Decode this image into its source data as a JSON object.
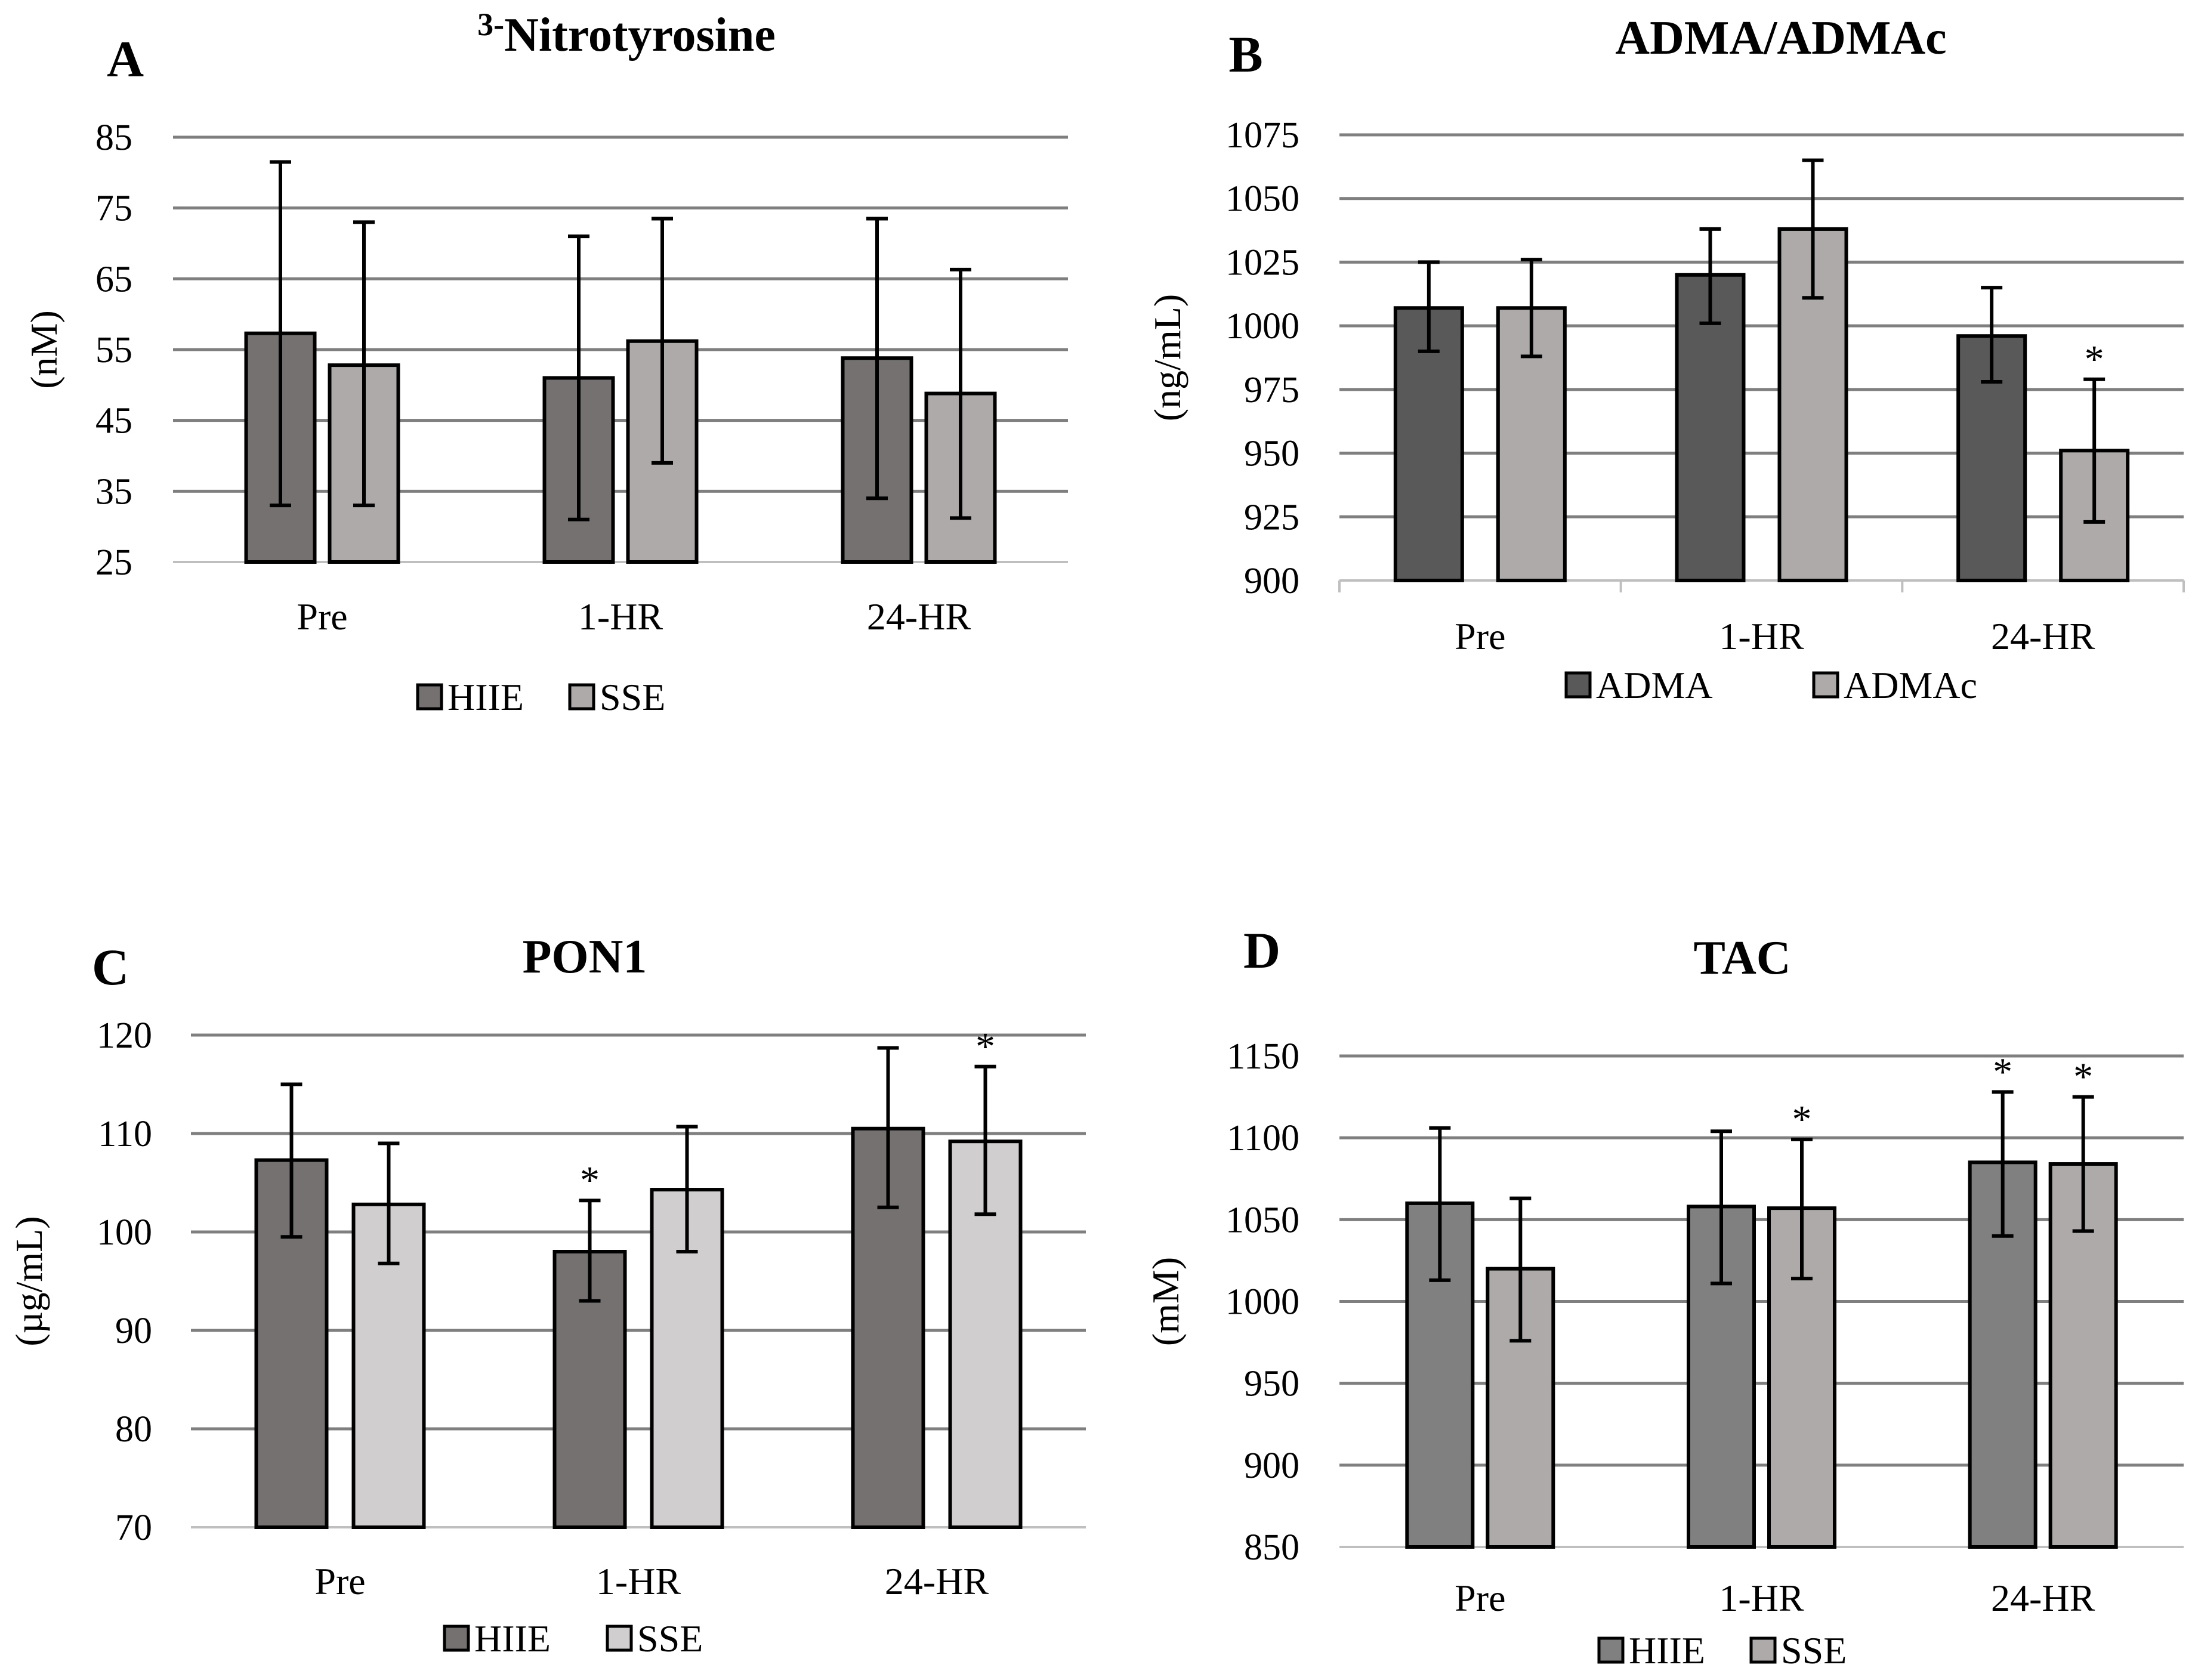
{
  "chart_data": [
    {
      "panel": "A",
      "type": "bar",
      "title_sup": "3-",
      "title": "Nitrotyrosine",
      "xlabel": "",
      "ylabel": "(nM)",
      "ylim": [
        25,
        85
      ],
      "yticks": [
        25,
        35,
        45,
        55,
        65,
        75,
        85
      ],
      "categories": [
        "Pre",
        "1-HR",
        "24-HR"
      ],
      "series": [
        {
          "name": "HIIE",
          "values": [
            57.3,
            51.0,
            53.8
          ],
          "err_upper": [
            81.5,
            71.0,
            73.5
          ],
          "err_lower": [
            33.0,
            31.0,
            34.0
          ],
          "color": "#757171",
          "stars": [
            "",
            "",
            ""
          ]
        },
        {
          "name": "SSE",
          "values": [
            52.8,
            56.2,
            48.8
          ],
          "err_upper": [
            73.0,
            73.5,
            66.3
          ],
          "err_lower": [
            33.0,
            39.0,
            31.2
          ],
          "color": "#AEAAAA",
          "stars": [
            "",
            "",
            ""
          ]
        }
      ],
      "grid": true,
      "legend": "bottom"
    },
    {
      "panel": "B",
      "type": "bar",
      "title_sup": "",
      "title": "ADMA/ADMAc",
      "xlabel": "",
      "ylabel": "(ng/mL)",
      "ylim": [
        900,
        1075
      ],
      "yticks": [
        900,
        925,
        950,
        975,
        1000,
        1025,
        1050,
        1075
      ],
      "categories": [
        "Pre",
        "1-HR",
        "24-HR"
      ],
      "series": [
        {
          "name": "ADMA",
          "values": [
            1007,
            1020,
            996
          ],
          "err_upper": [
            1025,
            1038,
            1015
          ],
          "err_lower": [
            990,
            1001,
            978
          ],
          "color": "#595959",
          "stars": [
            "",
            "",
            ""
          ]
        },
        {
          "name": "ADMAc",
          "values": [
            1007,
            1038,
            951
          ],
          "err_upper": [
            1026,
            1065,
            979
          ],
          "err_lower": [
            988,
            1011,
            923
          ],
          "color": "#AEAAAA",
          "stars": [
            "",
            "",
            "*"
          ]
        }
      ],
      "grid": true,
      "legend": "bottom"
    },
    {
      "panel": "C",
      "type": "bar",
      "title_sup": "",
      "title": "PON1",
      "xlabel": "",
      "ylabel": "(µg/mL)",
      "ylim": [
        70,
        120
      ],
      "yticks": [
        70,
        80,
        90,
        100,
        110,
        120
      ],
      "categories": [
        "Pre",
        "1-HR",
        "24-HR"
      ],
      "series": [
        {
          "name": "HIIE",
          "values": [
            107.3,
            98.0,
            110.5
          ],
          "err_upper": [
            115.0,
            103.2,
            118.7
          ],
          "err_lower": [
            99.5,
            93.0,
            102.5
          ],
          "color": "#757171",
          "stars": [
            "",
            "*",
            ""
          ]
        },
        {
          "name": "SSE",
          "values": [
            102.8,
            104.3,
            109.2
          ],
          "err_upper": [
            109.0,
            110.7,
            116.8
          ],
          "err_lower": [
            96.8,
            98.0,
            101.8
          ],
          "color": "#D0CECE",
          "stars": [
            "",
            "",
            "*"
          ]
        }
      ],
      "grid": true,
      "legend": "bottom"
    },
    {
      "panel": "D",
      "type": "bar",
      "title_sup": "",
      "title": "TAC",
      "xlabel": "",
      "ylabel": "(mM)",
      "ylim": [
        850,
        1150
      ],
      "yticks": [
        850,
        900,
        950,
        1000,
        1050,
        1100,
        1150
      ],
      "categories": [
        "Pre",
        "1-HR",
        "24-HR"
      ],
      "series": [
        {
          "name": "HIIE",
          "values": [
            1060,
            1058,
            1085
          ],
          "err_upper": [
            1106,
            1104,
            1128
          ],
          "err_lower": [
            1013,
            1011,
            1040
          ],
          "color": "#808080",
          "stars": [
            "",
            "",
            "*"
          ]
        },
        {
          "name": "SSE",
          "values": [
            1020,
            1057,
            1084
          ],
          "err_upper": [
            1063,
            1099,
            1125
          ],
          "err_lower": [
            976,
            1014,
            1043
          ],
          "color": "#AEAAAA",
          "stars": [
            "",
            "*",
            "*"
          ]
        }
      ],
      "grid": true,
      "legend": "bottom"
    }
  ]
}
